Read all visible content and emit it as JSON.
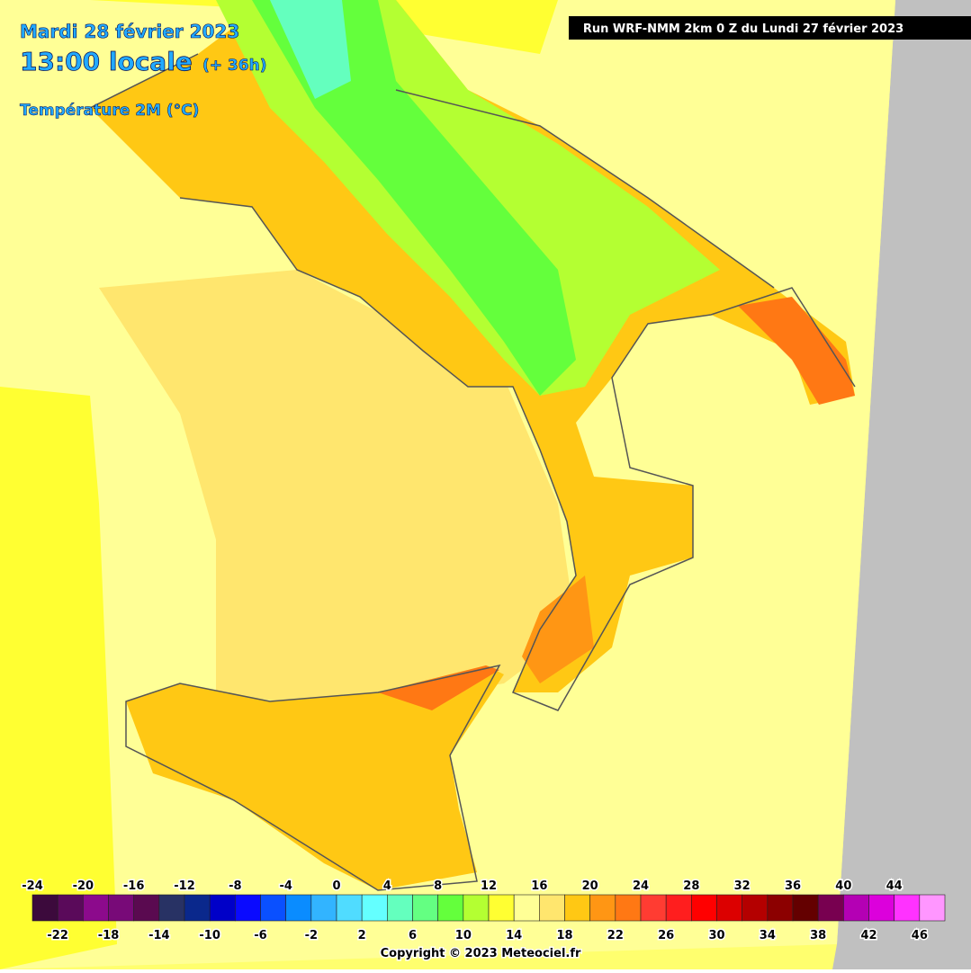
{
  "header": {
    "date": "Mardi 28 février 2023",
    "time": "13:00 locale",
    "lead": "(+ 36h)",
    "field": "Température 2M (°C)",
    "run": "Run WRF-NMM 2km 0 Z du Lundi 27 février 2023"
  },
  "legend": {
    "top_labels": [
      -24,
      -20,
      -16,
      -12,
      -8,
      -4,
      0,
      4,
      8,
      12,
      16,
      20,
      24,
      28,
      32,
      36,
      40,
      44
    ],
    "bottom_labels": [
      -22,
      -18,
      -14,
      -10,
      -6,
      -2,
      2,
      6,
      10,
      14,
      18,
      22,
      26,
      30,
      34,
      38,
      42,
      46
    ],
    "colors": [
      "#3c0a3c",
      "#5a0a5a",
      "#8c0a8c",
      "#780a78",
      "#5a0a50",
      "#283264",
      "#0a288c",
      "#0000c8",
      "#0a0aff",
      "#0a50ff",
      "#0a8cff",
      "#32b4ff",
      "#50dcff",
      "#64ffff",
      "#64ffbe",
      "#64ff82",
      "#64ff3c",
      "#b4ff32",
      "#ffff32",
      "#ffff96",
      "#ffe66e",
      "#ffc814",
      "#ff9614",
      "#ff7814",
      "#ff3c32",
      "#ff1e1e",
      "#ff0000",
      "#dc0000",
      "#b40000",
      "#8c0000",
      "#640000",
      "#780050",
      "#b400b4",
      "#dc00dc",
      "#ff32ff",
      "#ff96ff"
    ]
  },
  "footer": {
    "copyright": "Copyright © 2023 Meteociel.fr"
  }
}
